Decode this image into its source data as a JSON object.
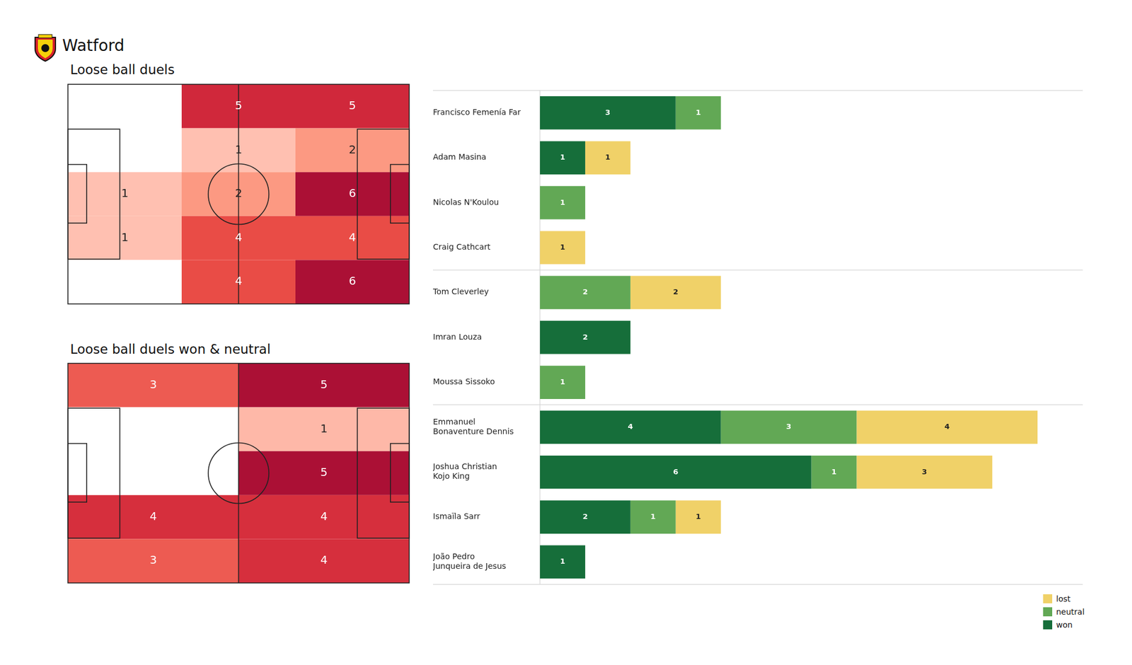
{
  "header": {
    "title": "Watford"
  },
  "chart_data": [
    {
      "type": "heatmap",
      "title": "Loose ball duels",
      "cells": [
        [
          null,
          5,
          5
        ],
        [
          null,
          1,
          2
        ],
        [
          1,
          2,
          6
        ],
        [
          1,
          4,
          4
        ],
        [
          null,
          4,
          6
        ]
      ],
      "data_labels": true,
      "tick_labels": false
    },
    {
      "type": "heatmap",
      "title": "Loose ball duels won & neutral",
      "cells": [
        [
          3,
          5
        ],
        [
          null,
          1
        ],
        [
          null,
          5
        ],
        [
          4,
          4
        ],
        [
          3,
          4
        ]
      ],
      "data_labels": true,
      "tick_labels": false
    },
    {
      "type": "bar",
      "orientation": "horizontal",
      "stacked": true,
      "data_labels": true,
      "tick_labels": "y",
      "legend": "lower right",
      "xlim": [
        0,
        12
      ],
      "categories": [
        "Francisco Femenía Far",
        "Adam Masina",
        "Nicolas N'Koulou",
        "Craig Cathcart",
        "Tom Cleverley",
        "Imran Louza",
        "Moussa Sissoko",
        "Emmanuel Bonaventure Dennis",
        "Joshua Christian Kojo King",
        "Ismaïla Sarr",
        "João Pedro Junqueira de Jesus"
      ],
      "series": [
        {
          "name": "won",
          "color": "#166e3a",
          "values": [
            3,
            1,
            null,
            null,
            null,
            2,
            null,
            4,
            6,
            2,
            1
          ]
        },
        {
          "name": "neutral",
          "color": "#62a855",
          "values": [
            1,
            null,
            1,
            null,
            2,
            null,
            1,
            3,
            1,
            1,
            null
          ]
        },
        {
          "name": "lost",
          "color": "#f0d168",
          "values": [
            null,
            1,
            null,
            1,
            2,
            null,
            null,
            4,
            3,
            1,
            null
          ]
        }
      ]
    }
  ]
}
